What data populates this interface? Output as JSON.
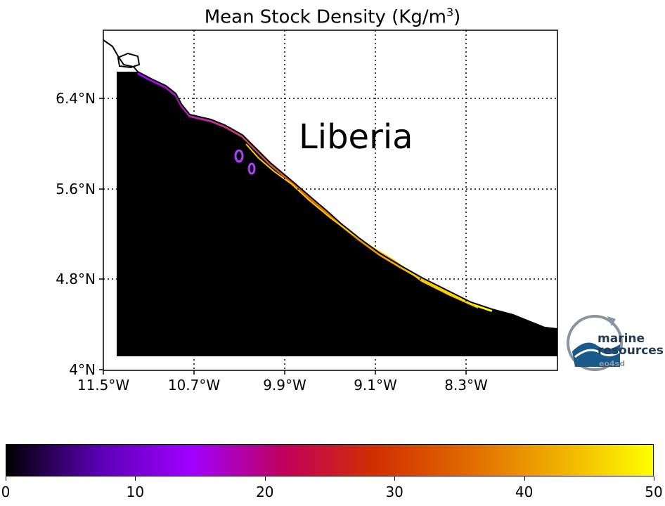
{
  "title": "Mean Stock Density (Kg/m",
  "title_sup": "3",
  "title_close": ")",
  "country_label": "Liberia",
  "y_ticks": [
    "6.4°N",
    "5.6°N",
    "4.8°N",
    "4°N"
  ],
  "x_ticks": [
    "11.5°W",
    "10.7°W",
    "9.9°W",
    "9.1°W",
    "8.3°W"
  ],
  "colorbar": {
    "ticks": [
      "0",
      "10",
      "20",
      "30",
      "40",
      "50"
    ],
    "colormap": "gnuplot/plasma-like: black→purple→red→orange→yellow",
    "colors": [
      "#000000",
      "#5a00b4",
      "#a000ff",
      "#c0005c",
      "#d03000",
      "#e06a00",
      "#f0b000",
      "#ffff00"
    ]
  },
  "logo": {
    "line1": "marine",
    "line2": "resources",
    "sub": "eo4sd"
  }
}
